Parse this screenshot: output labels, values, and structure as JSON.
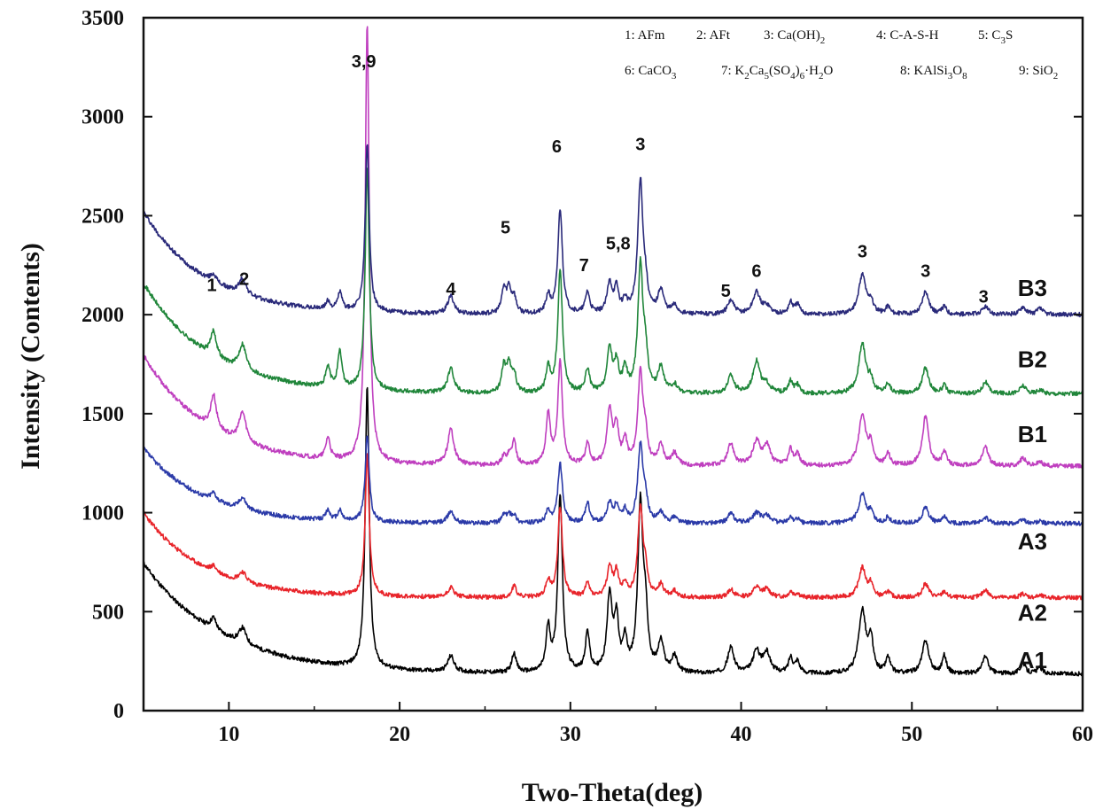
{
  "chart_data": {
    "type": "line",
    "title": "",
    "xlabel": "Two-Theta(deg)",
    "ylabel": "Intensity (Contents)",
    "xlim": [
      5,
      60
    ],
    "ylim": [
      0,
      3500
    ],
    "xticks": [
      10,
      20,
      30,
      40,
      50,
      60
    ],
    "yticks": [
      0,
      500,
      1000,
      1500,
      2000,
      2500,
      3000,
      3500
    ],
    "grid": false,
    "legend": {
      "position": "top-right",
      "entries": [
        {
          "num": "1:",
          "name": "AFm"
        },
        {
          "num": "2:",
          "name": "AFt"
        },
        {
          "num": "3:",
          "name": "Ca(OH)",
          "sub": "2"
        },
        {
          "num": "4:",
          "name": "C-A-S-H"
        },
        {
          "num": "5:",
          "name": "C",
          "sub": "3",
          "tail": "S"
        },
        {
          "num": "6:",
          "name": "CaCO",
          "sub": "3"
        },
        {
          "num": "7:",
          "name": "K",
          "s1": "2",
          "mid": "Ca",
          "s2": "5",
          "mid2": "(SO",
          "s3": "4",
          "mid3": ")",
          "s4": "6",
          "tail": "·H",
          "s5": "2",
          "end": "O"
        },
        {
          "num": "8:",
          "name": "KAlSi",
          "s1": "3",
          "mid": "O",
          "s2": "8"
        },
        {
          "num": "9:",
          "name": "SiO",
          "sub": "2"
        }
      ]
    },
    "peaks": [
      {
        "pos": 18.1,
        "width": 0.14
      },
      {
        "pos": 29.4,
        "width": 0.16
      },
      {
        "pos": 34.1,
        "width": 0.18
      },
      {
        "pos": 9.1,
        "width": 0.2
      },
      {
        "pos": 10.8,
        "width": 0.25
      },
      {
        "pos": 15.8,
        "width": 0.15
      },
      {
        "pos": 16.5,
        "width": 0.15
      },
      {
        "pos": 23.0,
        "width": 0.22
      },
      {
        "pos": 26.1,
        "width": 0.15
      },
      {
        "pos": 26.4,
        "width": 0.15
      },
      {
        "pos": 26.7,
        "width": 0.15
      },
      {
        "pos": 28.7,
        "width": 0.15
      },
      {
        "pos": 31.0,
        "width": 0.15
      },
      {
        "pos": 32.3,
        "width": 0.18
      },
      {
        "pos": 32.7,
        "width": 0.15
      },
      {
        "pos": 33.2,
        "width": 0.15
      },
      {
        "pos": 34.4,
        "width": 0.15
      },
      {
        "pos": 35.3,
        "width": 0.2
      },
      {
        "pos": 36.1,
        "width": 0.2
      },
      {
        "pos": 39.4,
        "width": 0.22
      },
      {
        "pos": 40.9,
        "width": 0.25
      },
      {
        "pos": 41.5,
        "width": 0.25
      },
      {
        "pos": 42.9,
        "width": 0.15
      },
      {
        "pos": 43.3,
        "width": 0.15
      },
      {
        "pos": 47.1,
        "width": 0.25
      },
      {
        "pos": 47.6,
        "width": 0.15
      },
      {
        "pos": 48.6,
        "width": 0.15
      },
      {
        "pos": 50.8,
        "width": 0.22
      },
      {
        "pos": 51.9,
        "width": 0.15
      },
      {
        "pos": 54.3,
        "width": 0.2
      },
      {
        "pos": 56.5,
        "width": 0.2
      },
      {
        "pos": 57.5,
        "width": 0.2
      }
    ],
    "series": [
      {
        "name": "A1",
        "color": "#000000",
        "baseline": 185,
        "lowA": 560,
        "lowK": 4.5,
        "seed": 11,
        "heights": [
          1430,
          900,
          840,
          60,
          80,
          0,
          0,
          80,
          0,
          0,
          100,
          220,
          200,
          390,
          250,
          150,
          250,
          150,
          80,
          130,
          110,
          100,
          80,
          60,
          320,
          160,
          80,
          170,
          90,
          90,
          50,
          30
        ]
      },
      {
        "name": "A2",
        "color": "#e8242a",
        "baseline": 570,
        "lowA": 430,
        "lowK": 3.5,
        "seed": 23,
        "heights": [
          720,
          460,
          450,
          30,
          50,
          0,
          0,
          50,
          0,
          0,
          60,
          80,
          70,
          150,
          120,
          60,
          100,
          60,
          30,
          40,
          50,
          40,
          30,
          20,
          150,
          60,
          30,
          70,
          30,
          40,
          20,
          10
        ]
      },
      {
        "name": "A3",
        "color": "#2b3aa8",
        "baseline": 945,
        "lowA": 380,
        "lowK": 3.5,
        "seed": 37,
        "heights": [
          440,
          300,
          390,
          40,
          60,
          50,
          50,
          60,
          40,
          40,
          40,
          60,
          100,
          100,
          80,
          60,
          100,
          50,
          30,
          50,
          50,
          40,
          30,
          20,
          150,
          50,
          30,
          80,
          30,
          30,
          20,
          10
        ]
      },
      {
        "name": "B1",
        "color": "#bf3fbf",
        "baseline": 1235,
        "lowA": 560,
        "lowK": 3.8,
        "seed": 53,
        "heights": [
          2220,
          520,
          460,
          170,
          150,
          110,
          0,
          180,
          40,
          40,
          120,
          260,
          110,
          280,
          180,
          120,
          120,
          100,
          60,
          110,
          120,
          100,
          80,
          60,
          260,
          100,
          60,
          250,
          70,
          100,
          40,
          20
        ]
      },
      {
        "name": "B2",
        "color": "#20863a",
        "baseline": 1600,
        "lowA": 560,
        "lowK": 3.8,
        "seed": 71,
        "heights": [
          1130,
          620,
          640,
          130,
          130,
          100,
          180,
          120,
          130,
          130,
          90,
          120,
          120,
          220,
          140,
          120,
          160,
          130,
          40,
          90,
          160,
          40,
          60,
          40,
          250,
          60,
          50,
          130,
          40,
          60,
          40,
          20
        ]
      },
      {
        "name": "B3",
        "color": "#2a2a7a",
        "baseline": 2000,
        "lowA": 520,
        "lowK": 3.6,
        "seed": 97,
        "heights": [
          850,
          530,
          670,
          40,
          80,
          40,
          90,
          90,
          120,
          120,
          80,
          90,
          110,
          150,
          120,
          60,
          100,
          120,
          40,
          70,
          110,
          40,
          60,
          50,
          200,
          60,
          40,
          120,
          40,
          40,
          40,
          30
        ]
      }
    ],
    "peak_labels": [
      {
        "text": "1",
        "x": 9.0,
        "y": 2120
      },
      {
        "text": "2",
        "x": 10.9,
        "y": 2150
      },
      {
        "text": "3,9",
        "x": 17.9,
        "y": 3250
      },
      {
        "text": "4",
        "x": 23.0,
        "y": 2100
      },
      {
        "text": "5",
        "x": 26.2,
        "y": 2410
      },
      {
        "text": "6",
        "x": 29.2,
        "y": 2820
      },
      {
        "text": "7",
        "x": 30.8,
        "y": 2220
      },
      {
        "text": "5,8",
        "x": 32.8,
        "y": 2330
      },
      {
        "text": "3",
        "x": 34.1,
        "y": 2830
      },
      {
        "text": "5",
        "x": 39.1,
        "y": 2090
      },
      {
        "text": "6",
        "x": 40.9,
        "y": 2190
      },
      {
        "text": "3",
        "x": 47.1,
        "y": 2290
      },
      {
        "text": "3",
        "x": 50.8,
        "y": 2190
      },
      {
        "text": "3",
        "x": 54.2,
        "y": 2060
      }
    ]
  }
}
